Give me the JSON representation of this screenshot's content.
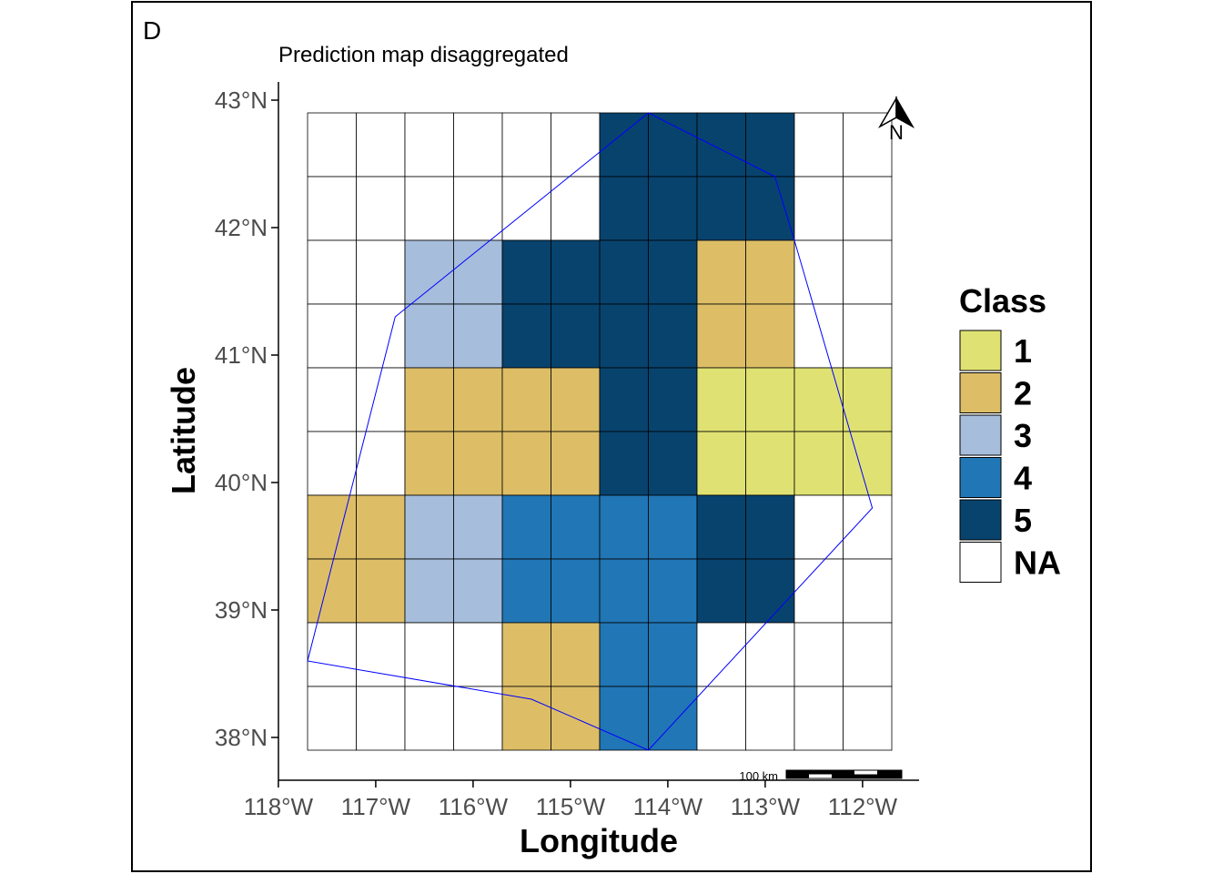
{
  "panel_label": "D",
  "title": "Prediction map disaggregated",
  "x_axis": {
    "label": "Longitude",
    "ticks": [
      {
        "value": -118,
        "label": "118°W"
      },
      {
        "value": -117,
        "label": "117°W"
      },
      {
        "value": -116,
        "label": "116°W"
      },
      {
        "value": -115,
        "label": "115°W"
      },
      {
        "value": -114,
        "label": "114°W"
      },
      {
        "value": -113,
        "label": "113°W"
      },
      {
        "value": -112,
        "label": "112°W"
      }
    ]
  },
  "y_axis": {
    "label": "Latitude",
    "ticks": [
      {
        "value": 38,
        "label": "38°N"
      },
      {
        "value": 39,
        "label": "39°N"
      },
      {
        "value": 40,
        "label": "40°N"
      },
      {
        "value": 41,
        "label": "41°N"
      },
      {
        "value": 42,
        "label": "42°N"
      },
      {
        "value": 43,
        "label": "43°N"
      }
    ]
  },
  "legend": {
    "title": "Class",
    "entries": [
      {
        "label": "1",
        "color": "#DFE272"
      },
      {
        "label": "2",
        "color": "#DDBE67"
      },
      {
        "label": "3",
        "color": "#A6BDDB"
      },
      {
        "label": "4",
        "color": "#2176B5"
      },
      {
        "label": "5",
        "color": "#08436E"
      },
      {
        "label": "NA",
        "color": "#FFFFFF"
      }
    ]
  },
  "north_arrow": {
    "label": "N"
  },
  "scale_bar": {
    "label": "100 km"
  },
  "grid": {
    "lon_edges": [
      -117.7,
      -117.2,
      -116.7,
      -116.2,
      -115.7,
      -115.2,
      -114.7,
      -114.2,
      -113.7,
      -113.2,
      -112.7,
      -112.2,
      -111.7
    ],
    "lat_edges": [
      42.9,
      42.4,
      41.9,
      41.4,
      40.9,
      40.4,
      39.9,
      39.4,
      38.9,
      38.4,
      37.9
    ],
    "classes": [
      [
        "NA",
        "NA",
        "NA",
        "NA",
        "NA",
        "NA",
        "5",
        "5",
        "5",
        "5",
        "NA",
        "NA"
      ],
      [
        "NA",
        "NA",
        "NA",
        "NA",
        "NA",
        "NA",
        "5",
        "5",
        "5",
        "5",
        "NA",
        "NA"
      ],
      [
        "NA",
        "NA",
        "3",
        "3",
        "5",
        "5",
        "5",
        "5",
        "2",
        "2",
        "NA",
        "NA"
      ],
      [
        "NA",
        "NA",
        "3",
        "3",
        "5",
        "5",
        "5",
        "5",
        "2",
        "2",
        "NA",
        "NA"
      ],
      [
        "NA",
        "NA",
        "2",
        "2",
        "2",
        "2",
        "5",
        "5",
        "1",
        "1",
        "1",
        "1"
      ],
      [
        "NA",
        "NA",
        "2",
        "2",
        "2",
        "2",
        "5",
        "5",
        "1",
        "1",
        "1",
        "1"
      ],
      [
        "2",
        "2",
        "3",
        "3",
        "4",
        "4",
        "4",
        "4",
        "5",
        "5",
        "NA",
        "NA"
      ],
      [
        "2",
        "2",
        "3",
        "3",
        "4",
        "4",
        "4",
        "4",
        "5",
        "5",
        "NA",
        "NA"
      ],
      [
        "NA",
        "NA",
        "NA",
        "NA",
        "2",
        "2",
        "4",
        "4",
        "NA",
        "NA",
        "NA",
        "NA"
      ],
      [
        "NA",
        "NA",
        "NA",
        "NA",
        "2",
        "2",
        "4",
        "4",
        "NA",
        "NA",
        "NA",
        "NA"
      ]
    ]
  },
  "boundary": {
    "color": "#0000FF",
    "points": [
      [
        -114.2,
        42.9
      ],
      [
        -112.9,
        42.4
      ],
      [
        -112.7,
        41.9
      ],
      [
        -111.9,
        39.8
      ],
      [
        -114.2,
        37.9
      ],
      [
        -115.4,
        38.3
      ],
      [
        -117.7,
        38.6
      ],
      [
        -116.8,
        41.3
      ],
      [
        -114.2,
        42.9
      ]
    ]
  }
}
